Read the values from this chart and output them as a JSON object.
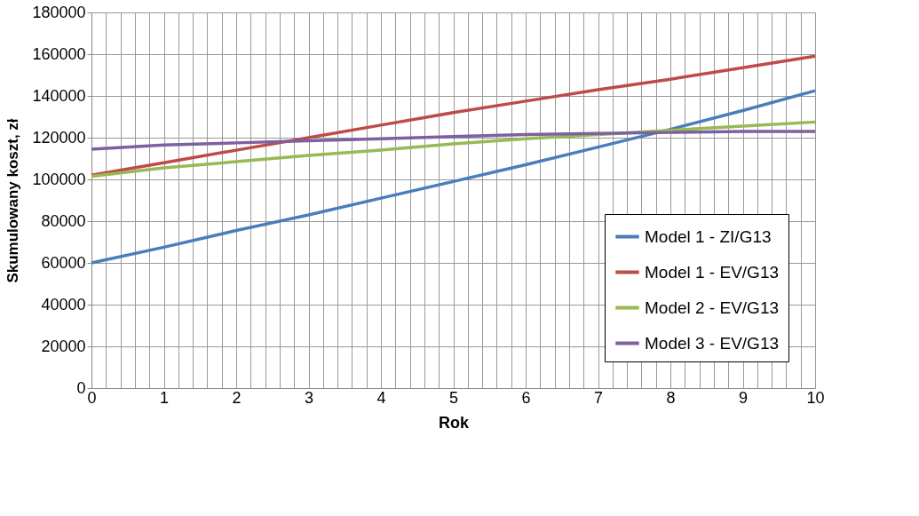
{
  "chart_data": {
    "type": "line",
    "xlabel": "Rok",
    "ylabel": "Skumulowany koszt, zł",
    "x": [
      0,
      1,
      2,
      3,
      4,
      5,
      6,
      7,
      8,
      9,
      10
    ],
    "series": [
      {
        "name": "Model 1 - ZI/G13",
        "color": "#4a7ebb",
        "values": [
          60000,
          67500,
          75500,
          83000,
          91000,
          99000,
          107000,
          115500,
          124000,
          133000,
          142500
        ]
      },
      {
        "name": "Model 1 - EV/G13",
        "color": "#be4b48",
        "values": [
          102000,
          108000,
          114000,
          120000,
          126000,
          132000,
          137500,
          143000,
          148000,
          153500,
          159000
        ]
      },
      {
        "name": "Model 2 - EV/G13",
        "color": "#98b954",
        "values": [
          101500,
          105500,
          108500,
          111500,
          114000,
          117000,
          119500,
          121500,
          123500,
          125500,
          127500
        ]
      },
      {
        "name": "Model 3 - EV/G13",
        "color": "#7d60a0",
        "values": [
          114500,
          116500,
          117500,
          118500,
          119500,
          120500,
          121500,
          122000,
          122500,
          123000,
          123000
        ]
      }
    ],
    "xlim": [
      0,
      10
    ],
    "xticks": [
      0,
      {
        "value": 0.2,
        "label": null
      },
      {
        "value": 0.4,
        "label": null
      },
      {
        "value": 0.6,
        "label": null
      },
      {
        "value": 0.8,
        "label": null
      },
      1,
      {
        "value": 1.2,
        "label": null
      },
      {
        "value": 1.4,
        "label": null
      },
      {
        "value": 1.6,
        "label": null
      },
      {
        "value": 1.8,
        "label": null
      },
      2,
      {
        "value": 2.2,
        "label": null
      },
      {
        "value": 2.4,
        "label": null
      },
      {
        "value": 2.6,
        "label": null
      },
      {
        "value": 2.8,
        "label": null
      },
      3,
      {
        "value": 3.2,
        "label": null
      },
      {
        "value": 3.4,
        "label": null
      },
      {
        "value": 3.6,
        "label": null
      },
      {
        "value": 3.8,
        "label": null
      },
      4,
      {
        "value": 4.2,
        "label": null
      },
      {
        "value": 4.4,
        "label": null
      },
      {
        "value": 4.6,
        "label": null
      },
      {
        "value": 4.8,
        "label": null
      },
      5,
      {
        "value": 5.2,
        "label": null
      },
      {
        "value": 5.4,
        "label": null
      },
      {
        "value": 5.6,
        "label": null
      },
      {
        "value": 5.8,
        "label": null
      },
      6,
      {
        "value": 6.2,
        "label": null
      },
      {
        "value": 6.4,
        "label": null
      },
      {
        "value": 6.6,
        "label": null
      },
      {
        "value": 6.8,
        "label": null
      },
      7,
      {
        "value": 7.2,
        "label": null
      },
      {
        "value": 7.4,
        "label": null
      },
      {
        "value": 7.6,
        "label": null
      },
      {
        "value": 7.8,
        "label": null
      },
      8,
      {
        "value": 8.2,
        "label": null
      },
      {
        "value": 8.4,
        "label": null
      },
      {
        "value": 8.6,
        "label": null
      },
      {
        "value": 8.8,
        "label": null
      },
      9,
      {
        "value": 9.2,
        "label": null
      },
      {
        "value": 9.4,
        "label": null
      },
      {
        "value": 9.6,
        "label": null
      },
      {
        "value": 9.8,
        "label": null
      },
      10
    ],
    "ylim": [
      0,
      180000
    ],
    "yticks": [
      0,
      20000,
      40000,
      60000,
      80000,
      100000,
      120000,
      140000,
      160000,
      180000
    ],
    "grid": true,
    "legend": "bottom right",
    "marker": "none",
    "line_style": "solid"
  }
}
